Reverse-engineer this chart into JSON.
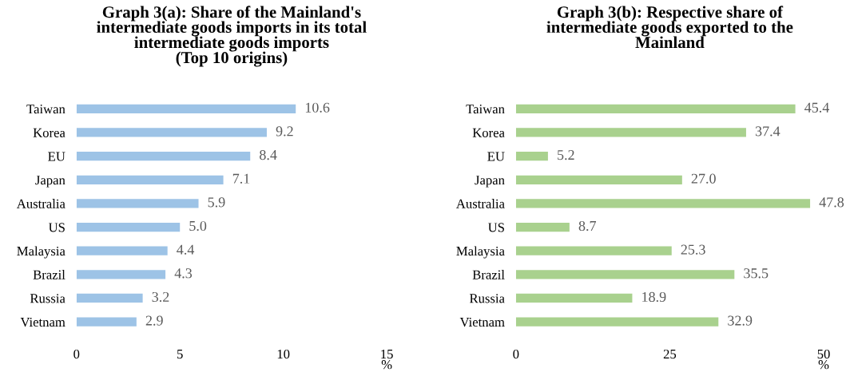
{
  "chart_data": [
    {
      "type": "bar",
      "orientation": "horizontal",
      "title": "Graph 3(a): Share of the Mainland's\nintermediate goods imports in its total\nintermediate goods imports\n(Top 10 origins)",
      "xlabel": "%",
      "categories": [
        "Taiwan",
        "Korea",
        "EU",
        "Japan",
        "Australia",
        "US",
        "Malaysia",
        "Brazil",
        "Russia",
        "Vietnam"
      ],
      "values": [
        10.6,
        9.2,
        8.4,
        7.1,
        5.9,
        5.0,
        4.4,
        4.3,
        3.2,
        2.9
      ],
      "value_labels": [
        "10.6",
        "9.2",
        "8.4",
        "7.1",
        "5.9",
        "5.0",
        "4.4",
        "4.3",
        "3.2",
        "2.9"
      ],
      "color": "#9dc3e6",
      "xlim": [
        0,
        15
      ],
      "xticks": [
        0,
        5,
        10,
        15
      ],
      "grid": false,
      "legend": false
    },
    {
      "type": "bar",
      "orientation": "horizontal",
      "title": "Graph 3(b): Respective share of\nintermediate goods exported to the\nMainland",
      "xlabel": "%",
      "categories": [
        "Taiwan",
        "Korea",
        "EU",
        "Japan",
        "Australia",
        "US",
        "Malaysia",
        "Brazil",
        "Russia",
        "Vietnam"
      ],
      "values": [
        45.4,
        37.4,
        5.2,
        27.0,
        47.8,
        8.7,
        25.3,
        35.5,
        18.9,
        32.9
      ],
      "value_labels": [
        "45.4",
        "37.4",
        "5.2",
        "27.0",
        "47.8",
        "8.7",
        "25.3",
        "35.5",
        "18.9",
        "32.9"
      ],
      "color": "#a9d18e",
      "xlim": [
        0,
        50
      ],
      "xticks": [
        0,
        25,
        50
      ],
      "grid": false,
      "legend": false
    }
  ]
}
